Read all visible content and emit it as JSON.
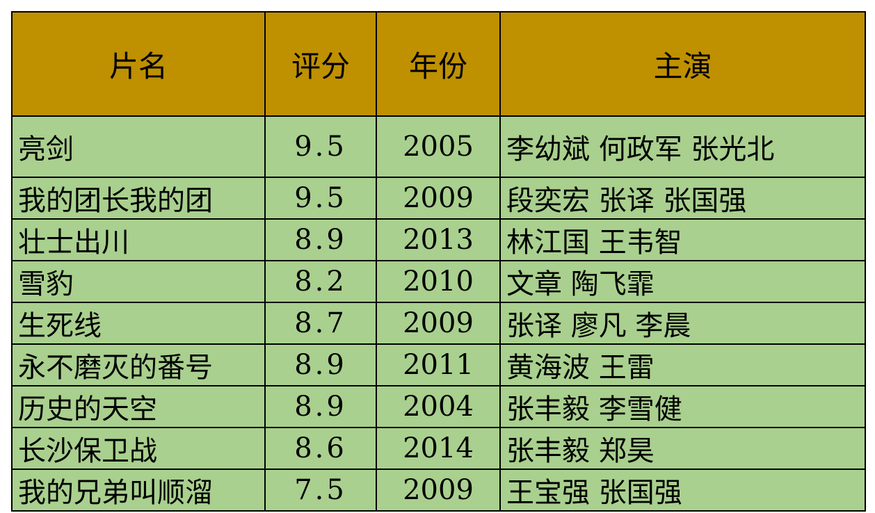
{
  "table": {
    "headers": [
      "片名",
      "评分",
      "年份",
      "主演"
    ],
    "header_color": "#BF9000",
    "body_color": "#A9D08E",
    "rows": [
      {
        "title": "亮剑",
        "rating": "9.5",
        "year": "2005",
        "cast": "李幼斌  何政军  张光北"
      },
      {
        "title": "我的团长我的团",
        "rating": "9.5",
        "year": "2009",
        "cast": "段奕宏  张译  张国强"
      },
      {
        "title": "壮士出川",
        "rating": "8.9",
        "year": "2013",
        "cast": "林江国  王韦智"
      },
      {
        "title": "雪豹",
        "rating": "8.2",
        "year": "2010",
        "cast": "文章  陶飞霏"
      },
      {
        "title": "生死线",
        "rating": "8.7",
        "year": "2009",
        "cast": "张译  廖凡  李晨"
      },
      {
        "title": "永不磨灭的番号",
        "rating": "8.9",
        "year": "2011",
        "cast": "黄海波  王雷"
      },
      {
        "title": "历史的天空",
        "rating": "8.9",
        "year": "2004",
        "cast": "张丰毅  李雪健"
      },
      {
        "title": "长沙保卫战",
        "rating": "8.6",
        "year": "2014",
        "cast": "张丰毅  郑昊"
      },
      {
        "title": "我的兄弟叫顺溜",
        "rating": "7.5",
        "year": "2009",
        "cast": "王宝强  张国强"
      }
    ]
  }
}
